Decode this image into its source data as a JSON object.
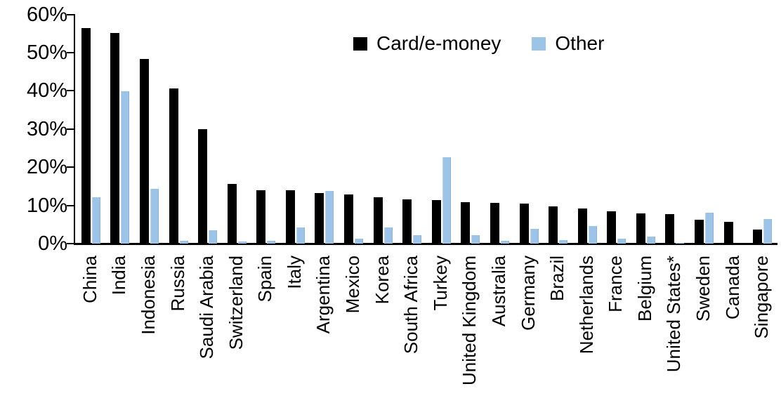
{
  "chart_data": {
    "type": "bar",
    "title": "",
    "xlabel": "",
    "ylabel": "",
    "ylim": [
      0,
      60
    ],
    "ytick_step": 10,
    "ytick_labels": [
      "0%",
      "10%",
      "20%",
      "30%",
      "40%",
      "50%",
      "60%"
    ],
    "grid": false,
    "legend_position": "top-center",
    "categories": [
      "China",
      "India",
      "Indonesia",
      "Russia",
      "Saudi Arabia",
      "Switzerland",
      "Spain",
      "Italy",
      "Argentina",
      "Mexico",
      "Korea",
      "South Africa",
      "Turkey",
      "United Kingdom",
      "Australia",
      "Germany",
      "Brazil",
      "Netherlands",
      "France",
      "Belgium",
      "United States*",
      "Sweden",
      "Canada",
      "Singapore"
    ],
    "series": [
      {
        "name": "Card/e-money",
        "color": "#000000",
        "values": [
          56.5,
          55.2,
          48.4,
          40.6,
          29.9,
          15.6,
          14.0,
          14.0,
          13.2,
          12.8,
          12.1,
          11.5,
          11.4,
          10.8,
          10.6,
          10.5,
          9.7,
          9.1,
          8.5,
          7.9,
          7.7,
          6.3,
          5.7,
          3.7
        ]
      },
      {
        "name": "Other",
        "color": "#9DC3E6",
        "values": [
          12.1,
          39.8,
          14.4,
          0.8,
          3.5,
          0.6,
          0.7,
          4.3,
          13.8,
          1.2,
          4.2,
          2.2,
          22.6,
          2.2,
          0.7,
          3.8,
          0.9,
          4.6,
          1.3,
          1.8,
          0.2,
          8.0,
          0.0,
          6.4
        ]
      }
    ]
  }
}
